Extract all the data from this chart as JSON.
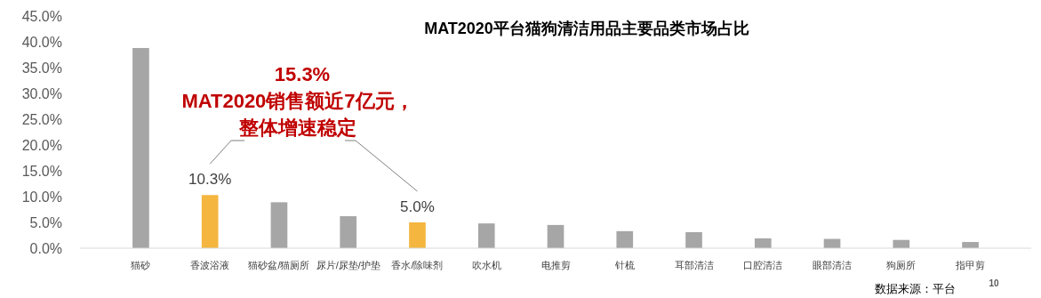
{
  "chart_data": {
    "type": "bar",
    "title": "MAT2020平台猫狗清洁用品主要品类市场占比",
    "categories": [
      "猫砂",
      "香波浴液",
      "猫砂盆/猫厕所",
      "尿片/尿垫/护垫",
      "香水/除味剂",
      "吹水机",
      "电推剪",
      "针梳",
      "耳部清洁",
      "口腔清洁",
      "眼部清洁",
      "狗厕所",
      "指甲剪"
    ],
    "values": [
      38.8,
      10.3,
      8.9,
      6.2,
      5.0,
      4.8,
      4.5,
      3.3,
      3.1,
      1.9,
      1.8,
      1.6,
      1.2
    ],
    "colors": [
      "#a6a6a6",
      "#f4b63f",
      "#a6a6a6",
      "#a6a6a6",
      "#f4b63f",
      "#a6a6a6",
      "#a6a6a6",
      "#a6a6a6",
      "#a6a6a6",
      "#a6a6a6",
      "#a6a6a6",
      "#a6a6a6",
      "#a6a6a6"
    ],
    "value_labels": [
      null,
      "10.3%",
      null,
      null,
      "5.0%",
      null,
      null,
      null,
      null,
      null,
      null,
      null,
      null
    ],
    "ylim": [
      0,
      45
    ],
    "yticks": [
      {
        "value": 0,
        "label": "0.0%"
      },
      {
        "value": 5,
        "label": "5.0%"
      },
      {
        "value": 10,
        "label": "10.0%"
      },
      {
        "value": 15,
        "label": "15.0%"
      },
      {
        "value": 20,
        "label": "20.0%"
      },
      {
        "value": 25,
        "label": "25.0%"
      },
      {
        "value": 30,
        "label": "30.0%"
      },
      {
        "value": 35,
        "label": "35.0%"
      },
      {
        "value": 40,
        "label": "40.0%"
      },
      {
        "value": 45,
        "label": "45.0%"
      }
    ],
    "grid": false,
    "annotations": [
      "15.3%",
      "MAT2020销售额近7亿元，",
      "整体增速稳定",
      "数据来源：平台",
      "10"
    ]
  }
}
